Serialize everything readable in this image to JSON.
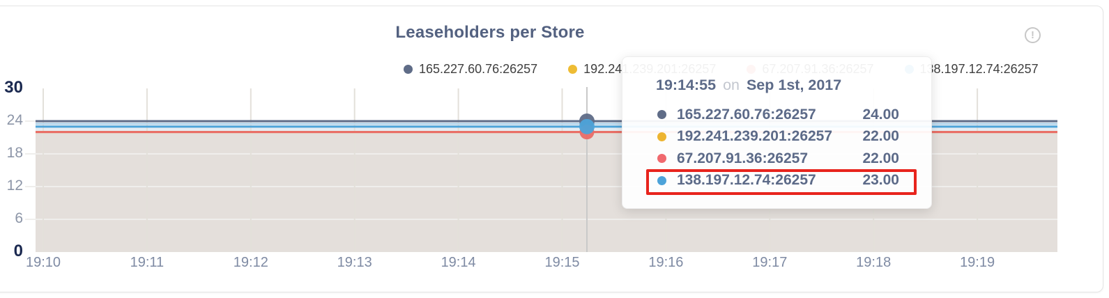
{
  "header": {
    "title": "Leaseholders per Store",
    "info_icon": "circle-exclamation-icon",
    "info_glyph": "!"
  },
  "palette": {
    "title_color": "#536180",
    "card_border": "#e4e4e4",
    "axis_minor_label": "#8c95a7",
    "axis_major_label": "#1b2950",
    "x_label": "#7e8aa3",
    "grid_vertical": "#e3e0da",
    "grid_horizontal": "#efeeec",
    "hover_guideline": "#c9c9c9",
    "area_blend": "#e3ddd6"
  },
  "tooltip": {
    "time": "19:14:55",
    "conjunction": "on",
    "date": "Sep 1st, 2017",
    "rows": [
      {
        "name": "165.227.60.76:26257",
        "value": "24.00",
        "color": "#5f6c87"
      },
      {
        "name": "192.241.239.201:26257",
        "value": "22.00",
        "color": "#edb431"
      },
      {
        "name": "67.207.91.36:26257",
        "value": "22.00",
        "color": "#f0696e"
      },
      {
        "name": "138.197.12.74:26257",
        "value": "23.00",
        "color": "#4da3d9"
      }
    ],
    "highlighted_row_index": 3,
    "highlight_border_color": "#e8241d"
  },
  "chart_data": {
    "type": "line",
    "title": "Leaseholders per Store",
    "x_ticks": [
      "19:10",
      "19:11",
      "19:12",
      "19:13",
      "19:14",
      "19:15",
      "19:16",
      "19:17",
      "19:18",
      "19:19"
    ],
    "xlabel": "",
    "ylabel": "",
    "ylim": [
      0,
      30
    ],
    "y_ticks": [
      0,
      6,
      12,
      18,
      24,
      30
    ],
    "y_major_ticks": [
      0,
      30
    ],
    "grid": true,
    "legend_position": "top-right",
    "area_fill_opacity": 0.08,
    "hover_time": "19:14:55",
    "series": [
      {
        "name": "165.227.60.76:26257",
        "color": "#5f6c87",
        "value": 24,
        "hover_value": 24
      },
      {
        "name": "192.241.239.201:26257",
        "color": "#eebc34",
        "value": 22,
        "hover_value": 22
      },
      {
        "name": "67.207.91.36:26257",
        "color": "#e96c67",
        "value": 22,
        "hover_value": 22
      },
      {
        "name": "138.197.12.74:26257",
        "color": "#4da3d9",
        "value": 23,
        "hover_value": 23
      }
    ]
  }
}
